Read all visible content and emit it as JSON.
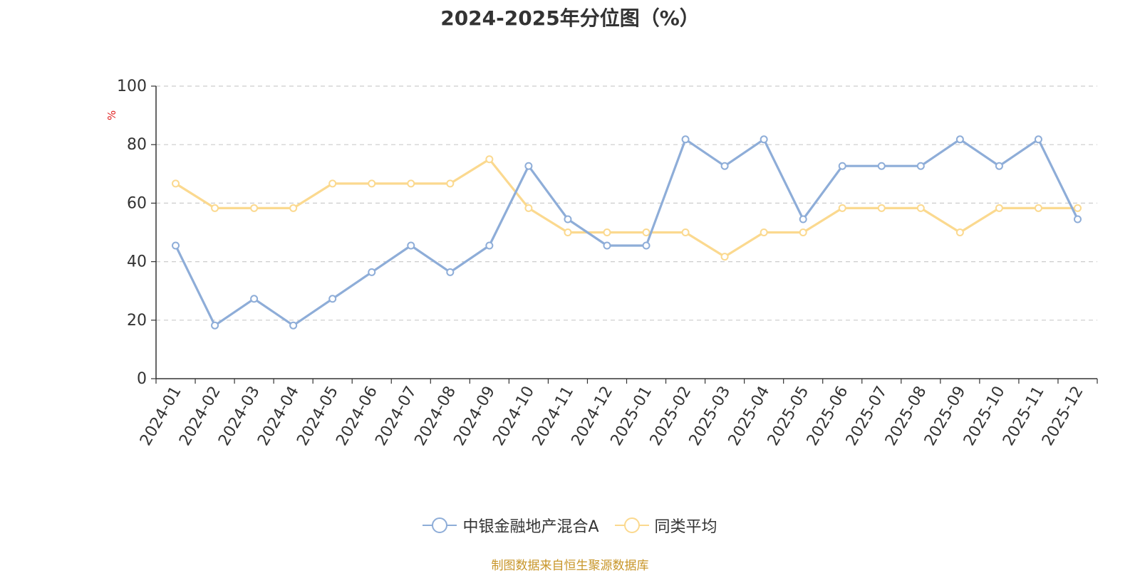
{
  "title": "2024-2025年分位图（%）",
  "source": "制图数据来自恒生聚源数据库",
  "chart_data": {
    "type": "line",
    "title": "2024-2025年分位图（%）",
    "ylabel": "%",
    "xlabel": "",
    "ylim": [
      0,
      100
    ],
    "yticks": [
      0,
      20,
      40,
      60,
      80,
      100
    ],
    "grid": true,
    "legend_position": "bottom-center",
    "categories": [
      "2024-01",
      "2024-02",
      "2024-03",
      "2024-04",
      "2024-05",
      "2024-06",
      "2024-07",
      "2024-08",
      "2024-09",
      "2024-10",
      "2024-11",
      "2024-12",
      "2025-01",
      "2025-02",
      "2025-03",
      "2025-04",
      "2025-05",
      "2025-06",
      "2025-07",
      "2025-08",
      "2025-09",
      "2025-10",
      "2025-11",
      "2025-12"
    ],
    "series": [
      {
        "name": "中银金融地产混合A",
        "color": "#8eadd8",
        "values": [
          45.5,
          18.2,
          27.3,
          18.2,
          27.3,
          36.4,
          45.5,
          36.4,
          45.5,
          72.7,
          54.5,
          45.5,
          45.5,
          81.8,
          72.7,
          81.8,
          54.5,
          72.7,
          72.7,
          72.7,
          81.8,
          72.7,
          81.8,
          54.5
        ]
      },
      {
        "name": "同类平均",
        "color": "#fbd98f",
        "values": [
          66.7,
          58.3,
          58.3,
          58.3,
          66.7,
          66.7,
          66.7,
          66.7,
          75.0,
          58.3,
          50.0,
          50.0,
          50.0,
          50.0,
          41.7,
          50.0,
          50.0,
          58.3,
          58.3,
          58.3,
          50.0,
          58.3,
          58.3,
          58.3
        ]
      }
    ]
  }
}
